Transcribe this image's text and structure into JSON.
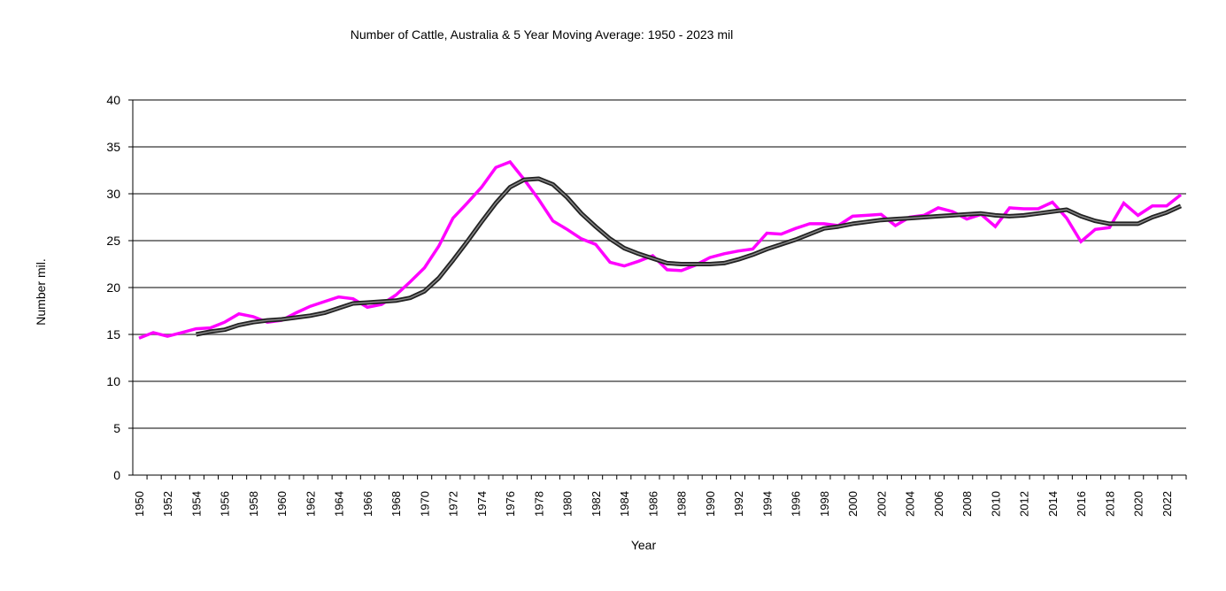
{
  "chart_data": {
    "type": "line",
    "title": "Number of  Cattle,  Australia & 5 Year Moving Average: 1950 - 2023 mil",
    "xlabel": "Year",
    "ylabel": "Number mil.",
    "ylim": [
      0,
      40
    ],
    "yticks": [
      0,
      5,
      10,
      15,
      20,
      25,
      30,
      35,
      40
    ],
    "xlim": [
      1950,
      2023
    ],
    "xtick_step": 2,
    "grid": "horizontal",
    "series": [
      {
        "name": "Number of Cattle",
        "color": "#ff00ff",
        "start_year": 1950,
        "values": [
          14.6,
          15.2,
          14.8,
          15.2,
          15.6,
          15.7,
          16.3,
          17.2,
          16.9,
          16.3,
          16.5,
          17.3,
          18.0,
          18.5,
          19.0,
          18.8,
          17.9,
          18.2,
          19.2,
          20.6,
          22.1,
          24.4,
          27.4,
          29.0,
          30.7,
          32.8,
          33.4,
          31.5,
          29.4,
          27.1,
          26.2,
          25.2,
          24.6,
          22.7,
          22.3,
          22.8,
          23.4,
          21.9,
          21.8,
          22.4,
          23.2,
          23.6,
          23.9,
          24.1,
          25.8,
          25.7,
          26.3,
          26.8,
          26.8,
          26.6,
          27.6,
          27.7,
          27.8,
          26.6,
          27.5,
          27.7,
          28.5,
          28.1,
          27.3,
          27.8,
          26.5,
          28.5,
          28.4,
          28.4,
          29.1,
          27.4,
          24.9,
          26.2,
          26.4,
          29.0,
          27.7,
          28.7,
          28.7,
          29.9
        ]
      },
      {
        "name": "5 Year Moving Average",
        "color": "#333333",
        "start_year": 1954,
        "values": [
          15.0,
          15.3,
          15.5,
          16.0,
          16.3,
          16.5,
          16.6,
          16.8,
          17.0,
          17.3,
          17.8,
          18.3,
          18.4,
          18.5,
          18.6,
          18.9,
          19.6,
          21.0,
          22.9,
          24.9,
          27.0,
          29.0,
          30.7,
          31.5,
          31.6,
          31.0,
          29.6,
          27.9,
          26.5,
          25.2,
          24.2,
          23.6,
          23.1,
          22.6,
          22.5,
          22.5,
          22.5,
          22.6,
          23.0,
          23.5,
          24.1,
          24.6,
          25.1,
          25.7,
          26.3,
          26.5,
          26.8,
          27.0,
          27.2,
          27.3,
          27.4,
          27.5,
          27.6,
          27.7,
          27.8,
          27.9,
          27.7,
          27.6,
          27.7,
          27.9,
          28.1,
          28.3,
          27.6,
          27.1,
          26.8,
          26.8,
          26.8,
          27.5,
          28.0,
          28.7
        ]
      }
    ]
  }
}
